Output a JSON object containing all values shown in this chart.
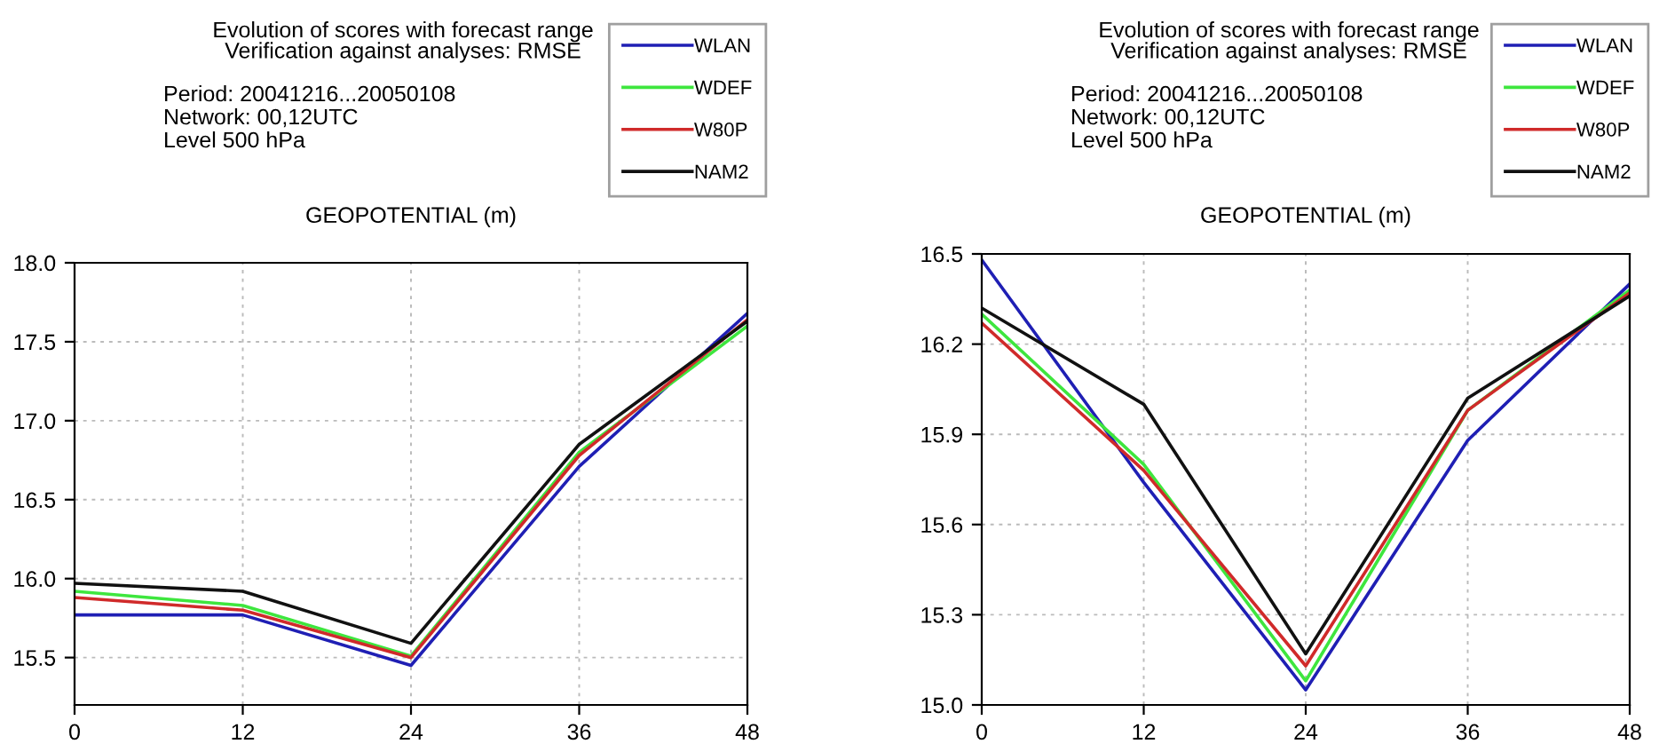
{
  "chart_data": [
    {
      "type": "line",
      "title": "Evolution of scores with forecast range\nVerification against analyses: RMSE",
      "subtitle": "GEOPOTENTIAL (m)",
      "annotations": [
        "Period: 20041216...20050108",
        "Network: 00,12UTC",
        "Level 500 hPa"
      ],
      "x": [
        0,
        12,
        24,
        36,
        48
      ],
      "xlim": [
        0,
        48
      ],
      "xticks": [
        0,
        12,
        24,
        36,
        48
      ],
      "ylim": [
        15.2,
        18.0
      ],
      "yticks": [
        {
          "value": 15.5,
          "label": "15.5"
        },
        {
          "value": 16.0,
          "label": "16.0"
        },
        {
          "value": 16.5,
          "label": "16.5"
        },
        {
          "value": 17.0,
          "label": "17.0"
        },
        {
          "value": 17.5,
          "label": "17.5"
        },
        {
          "value": 18.0,
          "label": "18.0"
        }
      ],
      "grid": true,
      "legend": "top right",
      "line_style": "solid",
      "series": [
        {
          "name": "WLAN",
          "color": "#1f1fb4",
          "values": [
            15.77,
            15.77,
            15.45,
            16.71,
            17.68
          ]
        },
        {
          "name": "WDEF",
          "color": "#3ee63e",
          "values": [
            15.92,
            15.83,
            15.51,
            16.8,
            17.6
          ]
        },
        {
          "name": "W80P",
          "color": "#d02a2a",
          "values": [
            15.88,
            15.8,
            15.5,
            16.78,
            17.64
          ]
        },
        {
          "name": "NAM2",
          "color": "#111111",
          "values": [
            15.97,
            15.92,
            15.59,
            16.85,
            17.63
          ]
        }
      ]
    },
    {
      "type": "line",
      "title": "Evolution of scores with forecast range\nVerification against analyses: RMSE",
      "subtitle": "GEOPOTENTIAL (m)",
      "annotations": [
        "Period: 20041216...20050108",
        "Network: 00,12UTC",
        "Level 500 hPa"
      ],
      "x": [
        0,
        12,
        24,
        36,
        48
      ],
      "xlim": [
        0,
        48
      ],
      "xticks": [
        0,
        12,
        24,
        36,
        48
      ],
      "ylim": [
        15.0,
        16.5
      ],
      "yticks": [
        {
          "value": 15.0,
          "label": "15.0"
        },
        {
          "value": 15.3,
          "label": "15.3"
        },
        {
          "value": 15.6,
          "label": "15.6"
        },
        {
          "value": 15.9,
          "label": "15.9"
        },
        {
          "value": 16.2,
          "label": "16.2"
        },
        {
          "value": 16.5,
          "label": "16.5"
        }
      ],
      "grid": true,
      "legend": "top right",
      "line_style": "solid",
      "series": [
        {
          "name": "WLAN",
          "color": "#1f1fb4",
          "values": [
            16.48,
            15.74,
            15.05,
            15.88,
            16.4
          ]
        },
        {
          "name": "WDEF",
          "color": "#3ee63e",
          "values": [
            16.3,
            15.8,
            15.08,
            15.98,
            16.38
          ]
        },
        {
          "name": "W80P",
          "color": "#d02a2a",
          "values": [
            16.27,
            15.78,
            15.13,
            15.98,
            16.37
          ]
        },
        {
          "name": "NAM2",
          "color": "#111111",
          "values": [
            16.32,
            16.0,
            15.17,
            16.02,
            16.36
          ]
        }
      ]
    }
  ]
}
